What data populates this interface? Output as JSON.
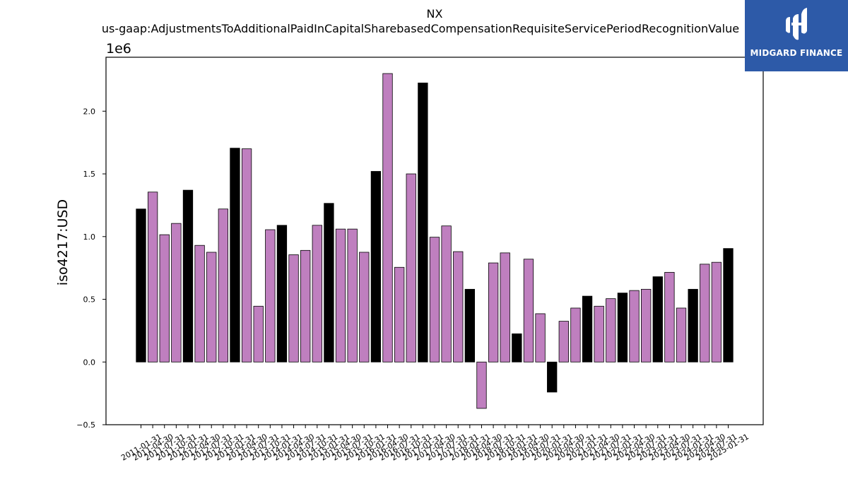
{
  "chart_data": {
    "type": "bar",
    "title": "NX",
    "subtitle": "us-gaap:AdjustmentsToAdditionalPaidInCapitalSharebasedCompensationRequisiteServicePeriodRecognitionValue",
    "ylabel": "iso4217:USD",
    "xlabel": "",
    "y_offset_label": "1e6",
    "ylim": [
      -0.5,
      2.43
    ],
    "yticks": [
      -0.5,
      0.0,
      0.5,
      1.0,
      1.5,
      2.0
    ],
    "ytick_labels": [
      "−0.5",
      "0.0",
      "0.5",
      "1.0",
      "1.5",
      "2.0"
    ],
    "series_colors": {
      "annual": "#000000",
      "quarter": "#bf7fbf"
    },
    "categories": [
      "2011-01-31",
      "2011-04-30",
      "2011-07-31",
      "2011-10-31",
      "2012-01-31",
      "2012-04-30",
      "2012-07-31",
      "2012-10-31",
      "2013-01-31",
      "2013-04-30",
      "2013-07-31",
      "2013-10-31",
      "2014-01-31",
      "2014-04-30",
      "2014-07-31",
      "2014-10-31",
      "2015-01-31",
      "2015-04-30",
      "2015-07-31",
      "2015-10-31",
      "2016-01-31",
      "2016-04-30",
      "2016-07-31",
      "2016-10-31",
      "2017-01-31",
      "2017-04-30",
      "2017-07-31",
      "2017-10-31",
      "2018-01-31",
      "2018-04-30",
      "2018-07-31",
      "2018-10-31",
      "2019-01-31",
      "2019-04-30",
      "2019-07-31",
      "2020-01-31",
      "2020-04-30",
      "2020-07-31",
      "2021-01-31",
      "2021-04-30",
      "2021-07-31",
      "2022-01-31",
      "2022-04-30",
      "2022-07-31",
      "2023-01-31",
      "2023-04-30",
      "2023-07-31",
      "2024-01-31",
      "2024-04-30",
      "2024-07-31",
      "2025-01-31"
    ],
    "values": [
      1.22,
      1.355,
      1.015,
      1.105,
      1.37,
      0.93,
      0.875,
      1.22,
      1.705,
      1.7,
      0.445,
      1.055,
      1.09,
      0.855,
      0.89,
      1.09,
      1.265,
      1.06,
      1.06,
      0.875,
      1.52,
      2.3,
      0.755,
      1.5,
      2.225,
      0.995,
      1.085,
      0.88,
      0.58,
      -0.37,
      0.79,
      0.87,
      0.225,
      0.82,
      0.385,
      -0.24,
      0.325,
      0.43,
      0.525,
      0.445,
      0.505,
      0.55,
      0.57,
      0.58,
      0.68,
      0.715,
      0.43,
      0.58,
      0.78,
      0.795,
      0.905
    ],
    "colors": [
      "#000000",
      "#bf7fbf",
      "#bf7fbf",
      "#bf7fbf",
      "#000000",
      "#bf7fbf",
      "#bf7fbf",
      "#bf7fbf",
      "#000000",
      "#bf7fbf",
      "#bf7fbf",
      "#bf7fbf",
      "#000000",
      "#bf7fbf",
      "#bf7fbf",
      "#bf7fbf",
      "#000000",
      "#bf7fbf",
      "#bf7fbf",
      "#bf7fbf",
      "#000000",
      "#bf7fbf",
      "#bf7fbf",
      "#bf7fbf",
      "#000000",
      "#bf7fbf",
      "#bf7fbf",
      "#bf7fbf",
      "#000000",
      "#bf7fbf",
      "#bf7fbf",
      "#bf7fbf",
      "#000000",
      "#bf7fbf",
      "#bf7fbf",
      "#000000",
      "#bf7fbf",
      "#bf7fbf",
      "#000000",
      "#bf7fbf",
      "#bf7fbf",
      "#000000",
      "#bf7fbf",
      "#bf7fbf",
      "#000000",
      "#bf7fbf",
      "#bf7fbf",
      "#000000",
      "#bf7fbf",
      "#bf7fbf",
      "#000000"
    ],
    "grid": false,
    "legend": "none"
  },
  "logo": {
    "text": "MIDGARD FINANCE",
    "background": "#2d5aa8",
    "icon": "midgard-logo-icon"
  }
}
